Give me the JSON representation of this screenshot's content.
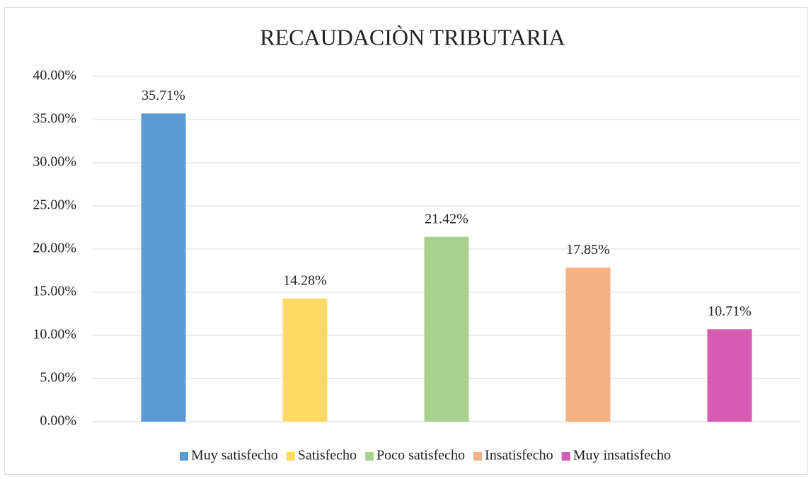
{
  "chart_data": {
    "type": "bar",
    "title": "RECAUDACIÒN TRIBUTARIA",
    "categories": [
      "Muy satisfecho",
      "Satisfecho",
      "Poco satisfecho",
      "Insatisfecho",
      "Muy insatisfecho"
    ],
    "values": [
      35.71,
      14.28,
      21.42,
      17.85,
      10.71
    ],
    "value_labels": [
      "35.71%",
      "14.28%",
      "21.42%",
      "17.85%",
      "10.71%"
    ],
    "colors": [
      "#5b9bd5",
      "#ffd966",
      "#a9d18e",
      "#f4b183",
      "#d55bb3"
    ],
    "ylim": [
      0,
      40
    ],
    "yticks": [
      {
        "value": 0,
        "label": "0.00%"
      },
      {
        "value": 5,
        "label": "5.00%"
      },
      {
        "value": 10,
        "label": "10.00%"
      },
      {
        "value": 15,
        "label": "15.00%"
      },
      {
        "value": 20,
        "label": "20.00%"
      },
      {
        "value": 25,
        "label": "25.00%"
      },
      {
        "value": 30,
        "label": "30.00%"
      },
      {
        "value": 35,
        "label": "35.00%"
      },
      {
        "value": 40,
        "label": "40.00%"
      }
    ],
    "grid": true,
    "legend": "bottom"
  }
}
